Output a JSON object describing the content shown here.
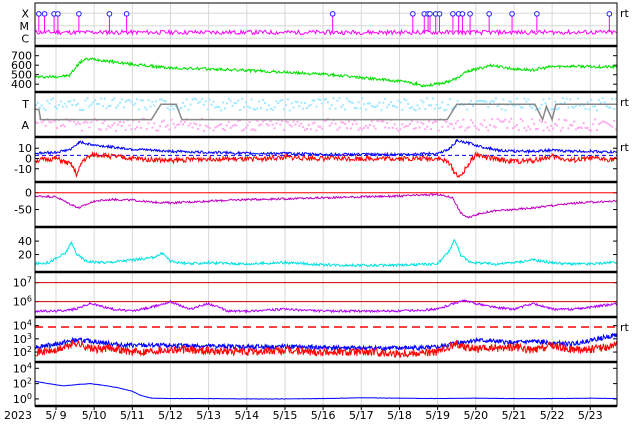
{
  "chart_data": {
    "type": "line",
    "year_label": "2023",
    "dates": [
      "5/ 9",
      "5/10",
      "5/11",
      "5/12",
      "5/13",
      "5/14",
      "5/15",
      "5/16",
      "5/17",
      "5/18",
      "5/19",
      "5/20",
      "5/21",
      "5/22",
      "5/23"
    ],
    "x_range_days": [
      8.45,
      23.7
    ],
    "panels": [
      {
        "id": "xray-flares",
        "labels": [
          {
            "text": "X",
            "level": 2
          },
          {
            "text": "M",
            "level": 1
          },
          {
            "text": "C",
            "level": 0
          }
        ],
        "ylim": [
          -0.3,
          2.5
        ],
        "marker_label": "rt",
        "colors": {
          "line": "#ff00ff",
          "marker_stroke": "#2020ff"
        },
        "flares": [
          8.55,
          8.7,
          8.95,
          9.05,
          9.6,
          10.4,
          10.85,
          16.25,
          18.35,
          18.65,
          18.75,
          18.8,
          18.95,
          19.05,
          19.4,
          19.55,
          19.65,
          19.85,
          20.35,
          20.95,
          21.6,
          23.5
        ],
        "flare_level": 1.95
      },
      {
        "id": "solar-wind-speed",
        "ticks": [
          400,
          500,
          600,
          700
        ],
        "ylim": [
          360,
          760
        ],
        "colors": {
          "line": "#00e000"
        },
        "series": [
          {
            "x": [
              8.45,
              9.0,
              9.35,
              9.6,
              9.75,
              10.0,
              10.4,
              11.0,
              12.0,
              13.0,
              14.0,
              15.0,
              16.0,
              17.0,
              18.0,
              18.45,
              18.6,
              18.9,
              19.2,
              19.5,
              19.8,
              20.0,
              20.4,
              21.0,
              21.5,
              22.0,
              22.5,
              23.0,
              23.7
            ],
            "y": [
              475,
              480,
              490,
              620,
              660,
              665,
              640,
              610,
              570,
              560,
              545,
              525,
              505,
              470,
              430,
              405,
              385,
              395,
              420,
              460,
              540,
              555,
              600,
              560,
              550,
              585,
              590,
              585,
              580
            ]
          }
        ]
      },
      {
        "id": "imf-sector",
        "labels": [
          {
            "text": "T",
            "level": 1
          },
          {
            "text": "A",
            "level": 0
          }
        ],
        "ylim": [
          -0.4,
          1.4
        ],
        "marker_label": "rt",
        "colors": {
          "toward": "#9fe8ff",
          "away": "#ffaaee",
          "sector": "#888888"
        },
        "series": [
          {
            "name": "sector",
            "x": [
              8.45,
              8.55,
              8.6,
              11.5,
              11.75,
              11.95,
              12.15,
              12.3,
              12.5,
              19.25,
              19.5,
              21.55,
              21.75,
              21.85,
              22.0,
              22.1,
              23.7
            ],
            "y": [
              0.75,
              0.75,
              0.25,
              0.25,
              1.0,
              1.0,
              1.0,
              0.25,
              0.25,
              0.25,
              1.0,
              1.0,
              0.25,
              0.9,
              0.25,
              1.0,
              1.0
            ]
          }
        ]
      },
      {
        "id": "imf-bz",
        "ticks": [
          -10,
          0,
          10
        ],
        "ylim": [
          -19,
          17
        ],
        "marker_label": "rt",
        "colors": {
          "bt": "#0000ff",
          "bz": "#ff0000",
          "ref": "#0000ff"
        },
        "series": [
          {
            "name": "Bt",
            "x": [
              8.45,
              9.0,
              9.4,
              9.6,
              10.0,
              11.0,
              12.0,
              13.0,
              14.0,
              15.0,
              16.0,
              17.0,
              18.0,
              19.0,
              19.3,
              19.5,
              19.8,
              20.2,
              20.6,
              21.0,
              21.5,
              22.0,
              22.5,
              23.0,
              23.7
            ],
            "y": [
              5,
              6,
              9,
              16,
              13,
              9,
              7,
              6,
              5,
              5,
              4,
              4,
              4,
              5,
              9,
              17,
              15,
              11,
              8,
              7,
              7,
              8,
              7,
              7,
              6
            ]
          },
          {
            "name": "Bz",
            "x": [
              8.45,
              9.0,
              9.4,
              9.55,
              9.7,
              10.0,
              11.0,
              12.0,
              13.0,
              14.0,
              15.0,
              16.0,
              17.0,
              18.0,
              19.0,
              19.3,
              19.45,
              19.6,
              19.8,
              20.0,
              20.4,
              21.0,
              21.5,
              22.0,
              22.5,
              23.0,
              23.7
            ],
            "y": [
              -2,
              0,
              -6,
              -16,
              -2,
              4,
              0,
              -2,
              0,
              -1,
              1,
              0,
              0,
              0,
              0,
              -4,
              -14,
              -18,
              -6,
              4,
              0,
              -3,
              -2,
              2,
              -2,
              0,
              -1
            ]
          }
        ],
        "ref_level": 3
      },
      {
        "id": "dst-index",
        "ticks": [
          -50,
          0
        ],
        "ylim": [
          -90,
          20
        ],
        "colors": {
          "line": "#c000c0",
          "ref": "#ff0000"
        },
        "series": [
          {
            "x": [
              8.45,
              9.0,
              9.3,
              9.6,
              10.0,
              10.5,
              11.0,
              11.5,
              12.0,
              13.0,
              14.0,
              15.0,
              16.0,
              17.0,
              18.0,
              19.0,
              19.4,
              19.6,
              19.8,
              20.0,
              20.4,
              21.0,
              21.5,
              22.0,
              22.5,
              23.0,
              23.7
            ],
            "y": [
              -10,
              -12,
              -30,
              -45,
              -25,
              -20,
              -22,
              -28,
              -30,
              -25,
              -20,
              -18,
              -15,
              -12,
              -10,
              -5,
              -15,
              -60,
              -75,
              -65,
              -55,
              -50,
              -45,
              -38,
              -32,
              -28,
              -25
            ]
          }
        ],
        "ref_level": 0
      },
      {
        "id": "proton-density",
        "ticks": [
          20,
          40
        ],
        "ylim": [
          0,
          55
        ],
        "colors": {
          "line": "#00e0e0"
        },
        "series": [
          {
            "x": [
              8.45,
              8.8,
              9.0,
              9.25,
              9.4,
              9.55,
              9.8,
              10.3,
              11.0,
              11.5,
              11.8,
              12.0,
              12.5,
              13.0,
              14.0,
              15.0,
              16.0,
              17.0,
              18.0,
              19.0,
              19.3,
              19.45,
              19.6,
              19.8,
              20.0,
              20.5,
              21.0,
              21.5,
              22.0,
              22.5,
              23.0,
              23.7
            ],
            "y": [
              6,
              8,
              14,
              22,
              38,
              20,
              10,
              8,
              12,
              15,
              22,
              10,
              6,
              8,
              6,
              8,
              5,
              4,
              4,
              6,
              25,
              42,
              20,
              10,
              8,
              6,
              8,
              12,
              8,
              6,
              6,
              9
            ]
          }
        ]
      },
      {
        "id": "temperature",
        "ticks": [
          1000000,
          10000000
        ],
        "tick_labels": [
          "10^6",
          "10^7"
        ],
        "ylim_log": [
          5.4,
          7.35
        ],
        "colors": {
          "line": "#b000ff",
          "ref": "#cc0000"
        },
        "series": [
          {
            "x": [
              8.45,
              9.0,
              9.5,
              9.9,
              10.5,
              11.0,
              11.5,
              12.0,
              12.5,
              13.0,
              13.5,
              14.0,
              15.0,
              16.0,
              17.0,
              18.0,
              19.0,
              19.4,
              19.7,
              20.0,
              20.5,
              21.0,
              21.5,
              22.0,
              22.5,
              23.0,
              23.7
            ],
            "y": [
              5.5,
              5.5,
              5.6,
              5.9,
              5.6,
              5.5,
              5.7,
              6.0,
              5.6,
              5.9,
              5.5,
              5.5,
              5.6,
              5.5,
              5.5,
              5.5,
              5.6,
              5.9,
              6.05,
              5.9,
              5.7,
              5.6,
              5.9,
              5.6,
              5.6,
              5.7,
              5.9
            ]
          }
        ]
      },
      {
        "id": "ion-flux",
        "ticks": [
          100,
          1000,
          10000
        ],
        "tick_labels": [
          "10^2",
          "10^3",
          "10^4"
        ],
        "ylim_log": [
          1.55,
          4.35
        ],
        "marker_label": "rt",
        "colors": {
          "blue": "#0000ff",
          "red": "#ff0000"
        },
        "threshold_log": 3.9,
        "series": [
          {
            "name": "blue",
            "x": [
              8.45,
              9.0,
              9.5,
              10.0,
              10.5,
              11.0,
              12.0,
              13.0,
              14.0,
              15.0,
              16.0,
              17.0,
              18.0,
              19.0,
              19.5,
              20.0,
              20.5,
              21.0,
              21.5,
              22.0,
              22.5,
              23.0,
              23.7
            ],
            "y": [
              2.4,
              2.6,
              2.9,
              2.8,
              2.6,
              2.5,
              2.5,
              2.45,
              2.4,
              2.4,
              2.35,
              2.3,
              2.3,
              2.35,
              2.7,
              2.9,
              2.8,
              2.7,
              2.8,
              2.7,
              2.6,
              2.9,
              3.3
            ]
          },
          {
            "name": "red",
            "x": [
              8.45,
              9.0,
              9.5,
              10.0,
              10.5,
              11.0,
              12.0,
              13.0,
              14.0,
              15.0,
              16.0,
              17.0,
              18.0,
              19.0,
              19.5,
              20.0,
              20.5,
              21.0,
              21.5,
              22.0,
              22.5,
              23.0,
              23.7
            ],
            "y": [
              2.0,
              2.1,
              2.7,
              2.2,
              2.3,
              2.0,
              2.2,
              2.1,
              2.0,
              2.1,
              2.0,
              2.0,
              1.9,
              2.0,
              2.6,
              2.2,
              2.3,
              2.4,
              2.1,
              2.5,
              2.2,
              2.2,
              2.5
            ]
          }
        ]
      },
      {
        "id": "electron-flux",
        "ticks": [
          1,
          100,
          10000
        ],
        "tick_labels": [
          "10^0",
          "10^2",
          "10^4"
        ],
        "ylim_log": [
          -0.4,
          4.3
        ],
        "colors": {
          "line": "#0000ff"
        },
        "series": [
          {
            "x": [
              8.45,
              8.8,
              9.2,
              9.6,
              9.9,
              10.2,
              10.6,
              11.0,
              11.2,
              11.5,
              12.0,
              13.0,
              14.0,
              15.0,
              16.0,
              17.0,
              18.0,
              19.0,
              20.0,
              21.0,
              22.0,
              23.0,
              23.7
            ],
            "y": [
              2.3,
              2.0,
              1.7,
              1.9,
              2.0,
              1.8,
              1.5,
              1.0,
              0.5,
              0.1,
              0.05,
              0.05,
              0.0,
              0.0,
              0.05,
              0.15,
              0.1,
              0.05,
              0.1,
              0.05,
              0.05,
              0.1,
              0.05
            ]
          }
        ]
      }
    ]
  }
}
